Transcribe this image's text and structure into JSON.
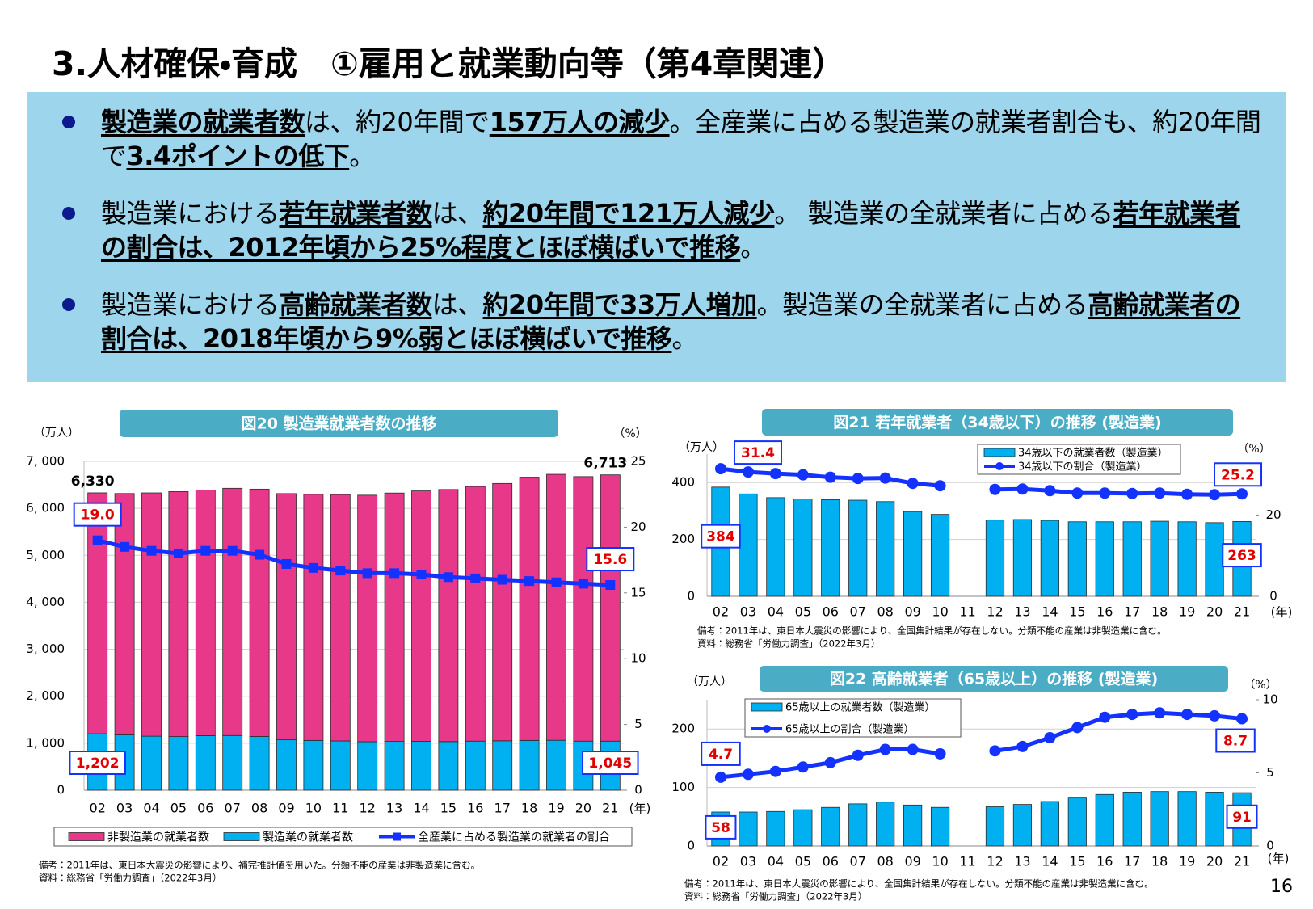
{
  "header": {
    "title": "3.人材確保・育成　①雇用と就業動向等（第4章関連）",
    "bullets": [
      [
        {
          "text": "製造業の就業者数",
          "emphasis": true
        },
        {
          "text": "は、約20年間で",
          "emphasis": false
        },
        {
          "text": "157万人の減少",
          "emphasis": true
        },
        {
          "text": "。全産業に占める製造業の就業者割合も、約20年間で",
          "emphasis": false
        },
        {
          "text": "3.4ポイントの低下",
          "emphasis": true
        },
        {
          "text": "。",
          "emphasis": false
        }
      ],
      [
        {
          "text": "製造業における",
          "emphasis": false
        },
        {
          "text": "若年就業者数",
          "emphasis": true
        },
        {
          "text": "は、",
          "emphasis": false
        },
        {
          "text": "約20年間で121万人減少",
          "emphasis": true
        },
        {
          "text": "。 製造業の全就業者に占める",
          "emphasis": false
        },
        {
          "text": "若年就業者の割合は、2012年頃から25%程度とほぼ横ばいで推移",
          "emphasis": true
        },
        {
          "text": "。",
          "emphasis": false
        }
      ],
      [
        {
          "text": "製造業における",
          "emphasis": false
        },
        {
          "text": "高齢就業者数",
          "emphasis": true
        },
        {
          "text": "は、",
          "emphasis": false
        },
        {
          "text": "約20年間で33万人増加",
          "emphasis": true
        },
        {
          "text": "。製造業の全就業者に占める",
          "emphasis": false
        },
        {
          "text": "高齢就業者の割合は、2018年頃から9%弱とほぼ横ばいで推移",
          "emphasis": true
        },
        {
          "text": "。",
          "emphasis": false
        }
      ]
    ]
  },
  "page_number": "16",
  "chart_data": [
    {
      "type": "bar",
      "stacked": true,
      "title": "図20  製造業就業者数の推移",
      "y_unit": "（万人）",
      "y2_unit": "（%）",
      "x_unit": "(年)",
      "categories": [
        "02",
        "03",
        "04",
        "05",
        "06",
        "07",
        "08",
        "09",
        "10",
        "11",
        "12",
        "13",
        "14",
        "15",
        "16",
        "17",
        "18",
        "19",
        "20",
        "21"
      ],
      "series": [
        {
          "name": "非製造業の就業者数",
          "color": "#e8388a",
          "values": [
            5128,
            5138,
            5179,
            5214,
            5228,
            5262,
            5265,
            5241,
            5238,
            5244,
            5248,
            5287,
            5331,
            5366,
            5420,
            5478,
            5604,
            5661,
            5631,
            5668
          ]
        },
        {
          "name": "製造業の就業者数",
          "color": "#00b0f0",
          "values": [
            1202,
            1178,
            1150,
            1142,
            1161,
            1165,
            1144,
            1073,
            1060,
            1049,
            1032,
            1039,
            1040,
            1035,
            1045,
            1052,
            1060,
            1063,
            1045,
            1045
          ],
          "value_labels": [
            "1,202",
            null,
            null,
            null,
            null,
            null,
            null,
            null,
            null,
            null,
            null,
            null,
            null,
            null,
            null,
            null,
            null,
            null,
            null,
            "1,045"
          ]
        },
        {
          "name": "全産業に占める製造業の就業者の割合",
          "type": "line",
          "axis": "y2",
          "color": "#1432ff",
          "marker": "square",
          "values": [
            19.0,
            18.5,
            18.2,
            18.0,
            18.2,
            18.2,
            17.9,
            17.2,
            16.9,
            16.7,
            16.5,
            16.5,
            16.4,
            16.2,
            16.1,
            16.0,
            15.9,
            15.8,
            15.7,
            15.6
          ],
          "value_labels": [
            "19.0",
            null,
            null,
            null,
            null,
            null,
            null,
            null,
            null,
            null,
            null,
            null,
            null,
            null,
            null,
            null,
            null,
            null,
            null,
            "15.6"
          ]
        }
      ],
      "total_labels": [
        "6,330",
        null,
        null,
        null,
        null,
        null,
        null,
        null,
        null,
        null,
        null,
        null,
        null,
        null,
        null,
        null,
        null,
        null,
        null,
        "6,713"
      ],
      "ylim": [
        0,
        7000
      ],
      "yticks": [
        0,
        {
          "value": 1000,
          "label": "1, 000"
        },
        {
          "value": 2000,
          "label": "2, 000"
        },
        {
          "value": 3000,
          "label": "3, 000"
        },
        {
          "value": 4000,
          "label": "4, 000"
        },
        {
          "value": 5000,
          "label": "5, 000"
        },
        {
          "value": 6000,
          "label": "6, 000"
        },
        {
          "value": 7000,
          "label": "7, 000"
        }
      ],
      "y2lim": [
        0,
        25
      ],
      "y2ticks": [
        0,
        5,
        10,
        15,
        20,
        25
      ],
      "grid": true,
      "legend": "bottom",
      "notes": [
        "備考：2011年は、東日本大震災の影響により、補完推計値を用いた。分類不能の産業は非製造業に含む。",
        "資料：総務省「労働力調査」（2022年3月）"
      ]
    },
    {
      "type": "bar",
      "title": "図21  若年就業者（34歳以下）の推移 (製造業)",
      "y_unit": "（万人）",
      "y2_unit": "（%）",
      "x_unit": "(年)",
      "categories": [
        "02",
        "03",
        "04",
        "05",
        "06",
        "07",
        "08",
        "09",
        "10",
        "11",
        "12",
        "13",
        "14",
        "15",
        "16",
        "17",
        "18",
        "19",
        "20",
        "21"
      ],
      "series": [
        {
          "name": "34歳以下の就業者数（製造業）",
          "color": "#00b0f0",
          "values": [
            384,
            360,
            347,
            342,
            340,
            338,
            333,
            298,
            288,
            null,
            268,
            270,
            267,
            262,
            262,
            262,
            264,
            262,
            259,
            263
          ],
          "value_labels": [
            "384",
            null,
            null,
            null,
            null,
            null,
            null,
            null,
            null,
            null,
            null,
            null,
            null,
            null,
            null,
            null,
            null,
            null,
            null,
            "263"
          ]
        },
        {
          "name": "34歳以下の割合（製造業）",
          "type": "line",
          "axis": "y2",
          "color": "#1432ff",
          "marker": "circle",
          "values": [
            31.4,
            30.6,
            30.2,
            29.9,
            29.3,
            29.0,
            29.1,
            27.8,
            27.2,
            null,
            26.3,
            26.4,
            26.0,
            25.4,
            25.4,
            25.3,
            25.4,
            25.1,
            25.0,
            25.2
          ],
          "value_labels": [
            "31.4",
            null,
            null,
            null,
            null,
            null,
            null,
            null,
            null,
            null,
            null,
            null,
            null,
            null,
            null,
            null,
            null,
            null,
            null,
            "25.2"
          ]
        }
      ],
      "ylim": [
        0,
        500
      ],
      "yticks": [
        0,
        200,
        400
      ],
      "y2lim": [
        0,
        35
      ],
      "y2ticks": [
        0,
        20
      ],
      "grid": true,
      "legend": "top",
      "notes": [
        "備考：2011年は、東日本大震災の影響により、全国集計結果が存在しない。分類不能の産業は非製造業に含む。",
        "資料：総務省「労働力調査」（2022年3月）"
      ]
    },
    {
      "type": "bar",
      "title": "図22  高齢就業者（65歳以上）の推移 (製造業)",
      "y_unit": "（万人）",
      "y2_unit": "（%）",
      "x_unit": "(年)",
      "categories": [
        "02",
        "03",
        "04",
        "05",
        "06",
        "07",
        "08",
        "09",
        "10",
        "11",
        "12",
        "13",
        "14",
        "15",
        "16",
        "17",
        "18",
        "19",
        "20",
        "21"
      ],
      "series": [
        {
          "name": "65歳以上の就業者数（製造業）",
          "color": "#00b0f0",
          "values": [
            58,
            58,
            59,
            62,
            66,
            72,
            75,
            70,
            66,
            null,
            67,
            71,
            76,
            82,
            88,
            92,
            93,
            93,
            92,
            91
          ],
          "value_labels": [
            "58",
            null,
            null,
            null,
            null,
            null,
            null,
            null,
            null,
            null,
            null,
            null,
            null,
            null,
            null,
            null,
            null,
            null,
            null,
            "91"
          ]
        },
        {
          "name": "65歳以上の割合（製造業）",
          "type": "line",
          "axis": "y2",
          "color": "#1432ff",
          "marker": "circle",
          "values": [
            4.7,
            4.9,
            5.1,
            5.4,
            5.7,
            6.2,
            6.6,
            6.6,
            6.3,
            null,
            6.5,
            6.8,
            7.4,
            8.1,
            8.8,
            9.0,
            9.1,
            9.0,
            8.9,
            8.7
          ],
          "value_labels": [
            "4.7",
            null,
            null,
            null,
            null,
            null,
            null,
            null,
            null,
            null,
            null,
            null,
            null,
            null,
            null,
            null,
            null,
            null,
            null,
            "8.7"
          ]
        }
      ],
      "ylim": [
        0,
        250
      ],
      "yticks": [
        0,
        100,
        200
      ],
      "y2lim": [
        0,
        10
      ],
      "y2ticks": [
        0,
        5,
        10
      ],
      "grid": true,
      "legend": "top",
      "notes": [
        "備考：2011年は、東日本大震災の影響により、全国集計結果が存在しない。分類不能の産業は非製造業に含む。",
        "資料：総務省「労働力調査」（2022年3月）"
      ]
    }
  ]
}
